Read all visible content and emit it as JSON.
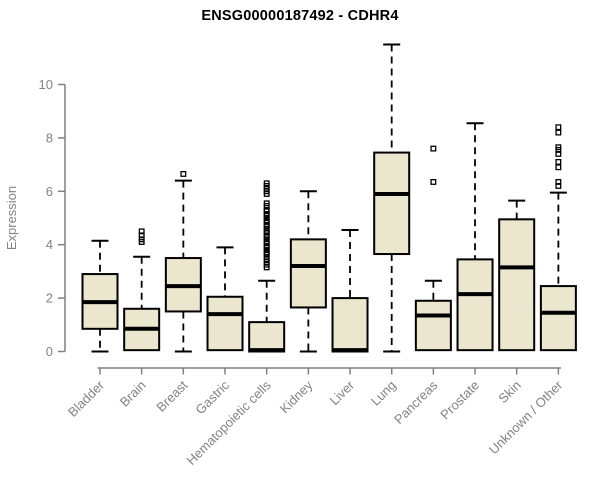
{
  "chart_data": {
    "type": "boxplot",
    "title": "ENSG00000187492 - CDHR4",
    "ylabel": "Expression",
    "xlabel": "",
    "ylim": [
      0,
      11.6
    ],
    "yticks": [
      0,
      2,
      4,
      6,
      8,
      10
    ],
    "grid": false,
    "legend": "none",
    "categories": [
      "Bladder",
      "Brain",
      "Breast",
      "Gastric",
      "Hematopoietic cells",
      "Kidney",
      "Liver",
      "Lung",
      "Pancreas",
      "Prostate",
      "Skin",
      "Unknown / Other"
    ],
    "series": [
      {
        "label": "Bladder",
        "whisker_low": 0,
        "q1": 0.85,
        "median": 1.85,
        "q3": 2.9,
        "whisker_high": 4.15,
        "outliers": []
      },
      {
        "label": "Brain",
        "whisker_low": 0,
        "q1": 0.05,
        "median": 0.85,
        "q3": 1.6,
        "whisker_high": 3.55,
        "outliers": [
          4.1,
          4.2,
          4.35,
          4.5
        ]
      },
      {
        "label": "Breast",
        "whisker_low": 0,
        "q1": 1.5,
        "median": 2.45,
        "q3": 3.5,
        "whisker_high": 6.4,
        "outliers": [
          6.65
        ]
      },
      {
        "label": "Gastric",
        "whisker_low": 0,
        "q1": 0.05,
        "median": 1.4,
        "q3": 2.05,
        "whisker_high": 3.9,
        "outliers": []
      },
      {
        "label": "Hematopoietic cells",
        "whisker_low": 0,
        "q1": 0,
        "median": 0.05,
        "q3": 1.1,
        "whisker_high": 2.65,
        "outliers": [
          3.15,
          3.25,
          3.35,
          3.45,
          3.55,
          3.65,
          3.7,
          3.8,
          3.9,
          3.95,
          4.05,
          4.1,
          4.2,
          4.3,
          4.35,
          4.45,
          4.5,
          4.6,
          4.7,
          4.75,
          4.85,
          4.9,
          5.0,
          5.1,
          5.15,
          5.25,
          5.3,
          5.45,
          5.55,
          5.9,
          6.0,
          6.1,
          6.2,
          6.3
        ]
      },
      {
        "label": "Kidney",
        "whisker_low": 0,
        "q1": 1.65,
        "median": 3.2,
        "q3": 4.2,
        "whisker_high": 6.0,
        "outliers": []
      },
      {
        "label": "Liver",
        "whisker_low": 0,
        "q1": 0,
        "median": 0.05,
        "q3": 2.0,
        "whisker_high": 4.55,
        "outliers": []
      },
      {
        "label": "Lung",
        "whisker_low": 0,
        "q1": 3.65,
        "median": 5.9,
        "q3": 7.45,
        "whisker_high": 11.5,
        "outliers": []
      },
      {
        "label": "Pancreas",
        "whisker_low": 0,
        "q1": 0.05,
        "median": 1.35,
        "q3": 1.9,
        "whisker_high": 2.65,
        "outliers": [
          6.35,
          7.6
        ]
      },
      {
        "label": "Prostate",
        "whisker_low": 0,
        "q1": 0.05,
        "median": 2.15,
        "q3": 3.45,
        "whisker_high": 8.55,
        "outliers": []
      },
      {
        "label": "Skin",
        "whisker_low": 0,
        "q1": 0.05,
        "median": 3.15,
        "q3": 4.95,
        "whisker_high": 5.65,
        "outliers": []
      },
      {
        "label": "Unknown / Other",
        "whisker_low": 0,
        "q1": 0.05,
        "median": 1.45,
        "q3": 2.45,
        "whisker_high": 5.95,
        "outliers": [
          6.2,
          6.35,
          6.9,
          7.1,
          7.4,
          7.55,
          7.65,
          8.2,
          8.4
        ]
      }
    ],
    "colors": {
      "box_fill": "#EBE6CE",
      "box_stroke": "#000000",
      "median": "#000000",
      "whisker": "#000000",
      "outlier": "#000000",
      "axis": "#808080",
      "tick_label": "#838383",
      "title": "#000000"
    }
  }
}
